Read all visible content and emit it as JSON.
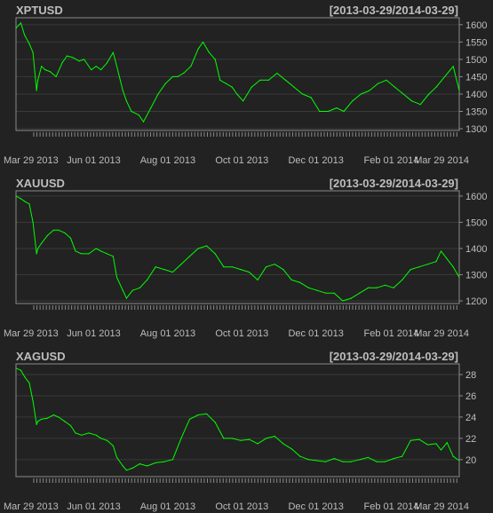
{
  "colors": {
    "background": "#222222",
    "frame": "#8a8a8a",
    "grid": "#3a3a3a",
    "line": "#00ff00",
    "text": "#bdbdbd",
    "tick": "#8a8a8a"
  },
  "chart_data": [
    {
      "type": "line",
      "title": "XPTUSD",
      "range_label": "[2013-03-29/2014-03-29]",
      "x_tick_labels": [
        "Mar 29 2013",
        "Jun 01 2013",
        "Aug 01 2013",
        "Oct 01 2013",
        "Dec 01 2013",
        "Feb 01 2014",
        "Mar 29 2014"
      ],
      "x_tick_dates": [
        "2013-03-29",
        "2013-06-01",
        "2013-08-01",
        "2013-10-01",
        "2013-12-01",
        "2014-02-01",
        "2014-03-29"
      ],
      "xlim": [
        "2013-03-29",
        "2014-03-29"
      ],
      "y_ticks": [
        1300,
        1350,
        1400,
        1450,
        1500,
        1550,
        1600
      ],
      "ylim": [
        1295,
        1620
      ],
      "grid": true,
      "y_axis_side": "right",
      "series": [
        {
          "x": [
            "2013-03-29",
            "2013-04-02",
            "2013-04-05",
            "2013-04-09",
            "2013-04-12",
            "2013-04-15",
            "2013-04-16",
            "2013-04-19",
            "2013-04-22",
            "2013-04-26",
            "2013-05-01",
            "2013-05-06",
            "2013-05-10",
            "2013-05-15",
            "2013-05-20",
            "2013-05-24",
            "2013-05-30",
            "2013-06-03",
            "2013-06-07",
            "2013-06-12",
            "2013-06-17",
            "2013-06-20",
            "2013-06-25",
            "2013-06-28",
            "2013-07-02",
            "2013-07-08",
            "2013-07-12",
            "2013-07-18",
            "2013-07-24",
            "2013-07-30",
            "2013-08-05",
            "2013-08-09",
            "2013-08-14",
            "2013-08-20",
            "2013-08-26",
            "2013-08-30",
            "2013-09-04",
            "2013-09-09",
            "2013-09-13",
            "2013-09-18",
            "2013-09-23",
            "2013-09-27",
            "2013-10-02",
            "2013-10-09",
            "2013-10-16",
            "2013-10-23",
            "2013-10-30",
            "2013-11-06",
            "2013-11-13",
            "2013-11-20",
            "2013-11-27",
            "2013-12-04",
            "2013-12-11",
            "2013-12-18",
            "2013-12-24",
            "2013-12-31",
            "2014-01-07",
            "2014-01-14",
            "2014-01-21",
            "2014-01-28",
            "2014-02-04",
            "2014-02-11",
            "2014-02-18",
            "2014-02-25",
            "2014-03-04",
            "2014-03-10",
            "2014-03-17",
            "2014-03-24",
            "2014-03-29"
          ],
          "y": [
            1590,
            1605,
            1570,
            1545,
            1520,
            1410,
            1440,
            1480,
            1470,
            1465,
            1450,
            1490,
            1510,
            1505,
            1495,
            1500,
            1470,
            1480,
            1470,
            1490,
            1520,
            1480,
            1410,
            1380,
            1350,
            1340,
            1320,
            1360,
            1400,
            1430,
            1450,
            1450,
            1460,
            1480,
            1530,
            1550,
            1520,
            1500,
            1440,
            1430,
            1420,
            1400,
            1380,
            1420,
            1440,
            1440,
            1460,
            1440,
            1420,
            1400,
            1390,
            1350,
            1350,
            1360,
            1350,
            1380,
            1400,
            1410,
            1430,
            1440,
            1420,
            1400,
            1380,
            1370,
            1400,
            1420,
            1450,
            1480,
            1410
          ]
        }
      ]
    },
    {
      "type": "line",
      "title": "XAUUSD",
      "range_label": "[2013-03-29/2014-03-29]",
      "x_tick_labels": [
        "Mar 29 2013",
        "Jun 01 2013",
        "Aug 01 2013",
        "Oct 01 2013",
        "Dec 01 2013",
        "Feb 01 2014",
        "Mar 29 2014"
      ],
      "x_tick_dates": [
        "2013-03-29",
        "2013-06-01",
        "2013-08-01",
        "2013-10-01",
        "2013-12-01",
        "2014-02-01",
        "2014-03-29"
      ],
      "xlim": [
        "2013-03-29",
        "2014-03-29"
      ],
      "y_ticks": [
        1200,
        1300,
        1400,
        1500,
        1600
      ],
      "ylim": [
        1190,
        1620
      ],
      "grid": true,
      "y_axis_side": "right",
      "series": [
        {
          "x": [
            "2013-03-29",
            "2013-04-02",
            "2013-04-05",
            "2013-04-09",
            "2013-04-12",
            "2013-04-15",
            "2013-04-16",
            "2013-04-19",
            "2013-04-24",
            "2013-04-29",
            "2013-05-03",
            "2013-05-08",
            "2013-05-13",
            "2013-05-17",
            "2013-05-22",
            "2013-05-28",
            "2013-06-03",
            "2013-06-07",
            "2013-06-12",
            "2013-06-17",
            "2013-06-20",
            "2013-06-25",
            "2013-06-28",
            "2013-07-03",
            "2013-07-09",
            "2013-07-15",
            "2013-07-22",
            "2013-07-29",
            "2013-08-05",
            "2013-08-12",
            "2013-08-19",
            "2013-08-26",
            "2013-09-02",
            "2013-09-09",
            "2013-09-16",
            "2013-09-23",
            "2013-09-30",
            "2013-10-07",
            "2013-10-14",
            "2013-10-21",
            "2013-10-28",
            "2013-11-04",
            "2013-11-11",
            "2013-11-18",
            "2013-11-25",
            "2013-12-02",
            "2013-12-09",
            "2013-12-16",
            "2013-12-23",
            "2013-12-30",
            "2014-01-06",
            "2014-01-13",
            "2014-01-20",
            "2014-01-27",
            "2014-02-03",
            "2014-02-10",
            "2014-02-17",
            "2014-02-24",
            "2014-03-03",
            "2014-03-10",
            "2014-03-14",
            "2014-03-19",
            "2014-03-24",
            "2014-03-29"
          ],
          "y": [
            1600,
            1590,
            1580,
            1570,
            1500,
            1380,
            1400,
            1420,
            1450,
            1470,
            1470,
            1460,
            1440,
            1390,
            1380,
            1380,
            1400,
            1390,
            1380,
            1370,
            1290,
            1240,
            1210,
            1240,
            1250,
            1280,
            1330,
            1320,
            1310,
            1340,
            1370,
            1400,
            1410,
            1380,
            1330,
            1330,
            1320,
            1310,
            1280,
            1330,
            1340,
            1320,
            1280,
            1270,
            1250,
            1240,
            1230,
            1230,
            1200,
            1210,
            1230,
            1250,
            1250,
            1260,
            1250,
            1280,
            1320,
            1330,
            1340,
            1350,
            1390,
            1360,
            1330,
            1290
          ]
        }
      ]
    },
    {
      "type": "line",
      "title": "XAGUSD",
      "range_label": "[2013-03-29/2014-03-29]",
      "x_tick_labels": [
        "Mar 29 2013",
        "Jun 01 2013",
        "Aug 01 2013",
        "Oct 01 2013",
        "Dec 01 2013",
        "Feb 01 2014",
        "Mar 29 2014"
      ],
      "x_tick_dates": [
        "2013-03-29",
        "2013-06-01",
        "2013-08-01",
        "2013-10-01",
        "2013-12-01",
        "2014-02-01",
        "2014-03-29"
      ],
      "xlim": [
        "2013-03-29",
        "2014-03-29"
      ],
      "y_ticks": [
        20,
        22,
        24,
        26,
        28
      ],
      "ylim": [
        18.4,
        29.0
      ],
      "grid": true,
      "y_axis_side": "right",
      "series": [
        {
          "x": [
            "2013-03-29",
            "2013-04-02",
            "2013-04-05",
            "2013-04-09",
            "2013-04-12",
            "2013-04-15",
            "2013-04-16",
            "2013-04-19",
            "2013-04-24",
            "2013-04-29",
            "2013-05-03",
            "2013-05-08",
            "2013-05-13",
            "2013-05-17",
            "2013-05-22",
            "2013-05-28",
            "2013-06-03",
            "2013-06-07",
            "2013-06-12",
            "2013-06-17",
            "2013-06-20",
            "2013-06-25",
            "2013-06-28",
            "2013-07-03",
            "2013-07-09",
            "2013-07-15",
            "2013-07-22",
            "2013-07-29",
            "2013-08-05",
            "2013-08-12",
            "2013-08-19",
            "2013-08-26",
            "2013-09-02",
            "2013-09-09",
            "2013-09-16",
            "2013-09-23",
            "2013-09-30",
            "2013-10-07",
            "2013-10-14",
            "2013-10-21",
            "2013-10-28",
            "2013-11-04",
            "2013-11-11",
            "2013-11-18",
            "2013-11-25",
            "2013-12-02",
            "2013-12-09",
            "2013-12-16",
            "2013-12-23",
            "2013-12-30",
            "2014-01-06",
            "2014-01-13",
            "2014-01-20",
            "2014-01-27",
            "2014-02-03",
            "2014-02-10",
            "2014-02-17",
            "2014-02-24",
            "2014-03-03",
            "2014-03-10",
            "2014-03-14",
            "2014-03-19",
            "2014-03-24",
            "2014-03-29"
          ],
          "y": [
            28.6,
            28.4,
            27.8,
            27.2,
            25.5,
            23.3,
            23.6,
            23.8,
            23.9,
            24.2,
            24.0,
            23.6,
            23.2,
            22.5,
            22.3,
            22.5,
            22.3,
            22.0,
            21.8,
            21.3,
            20.2,
            19.4,
            19.0,
            19.2,
            19.6,
            19.4,
            19.7,
            19.8,
            20.0,
            22.0,
            23.8,
            24.2,
            24.3,
            23.5,
            22.0,
            22.0,
            21.8,
            21.9,
            21.5,
            22.0,
            22.2,
            21.5,
            21.0,
            20.3,
            20.0,
            19.9,
            19.8,
            20.1,
            19.8,
            19.8,
            20.0,
            20.2,
            19.8,
            19.8,
            20.1,
            20.3,
            21.8,
            21.9,
            21.4,
            21.5,
            20.9,
            21.6,
            20.3,
            19.9
          ]
        }
      ]
    }
  ]
}
